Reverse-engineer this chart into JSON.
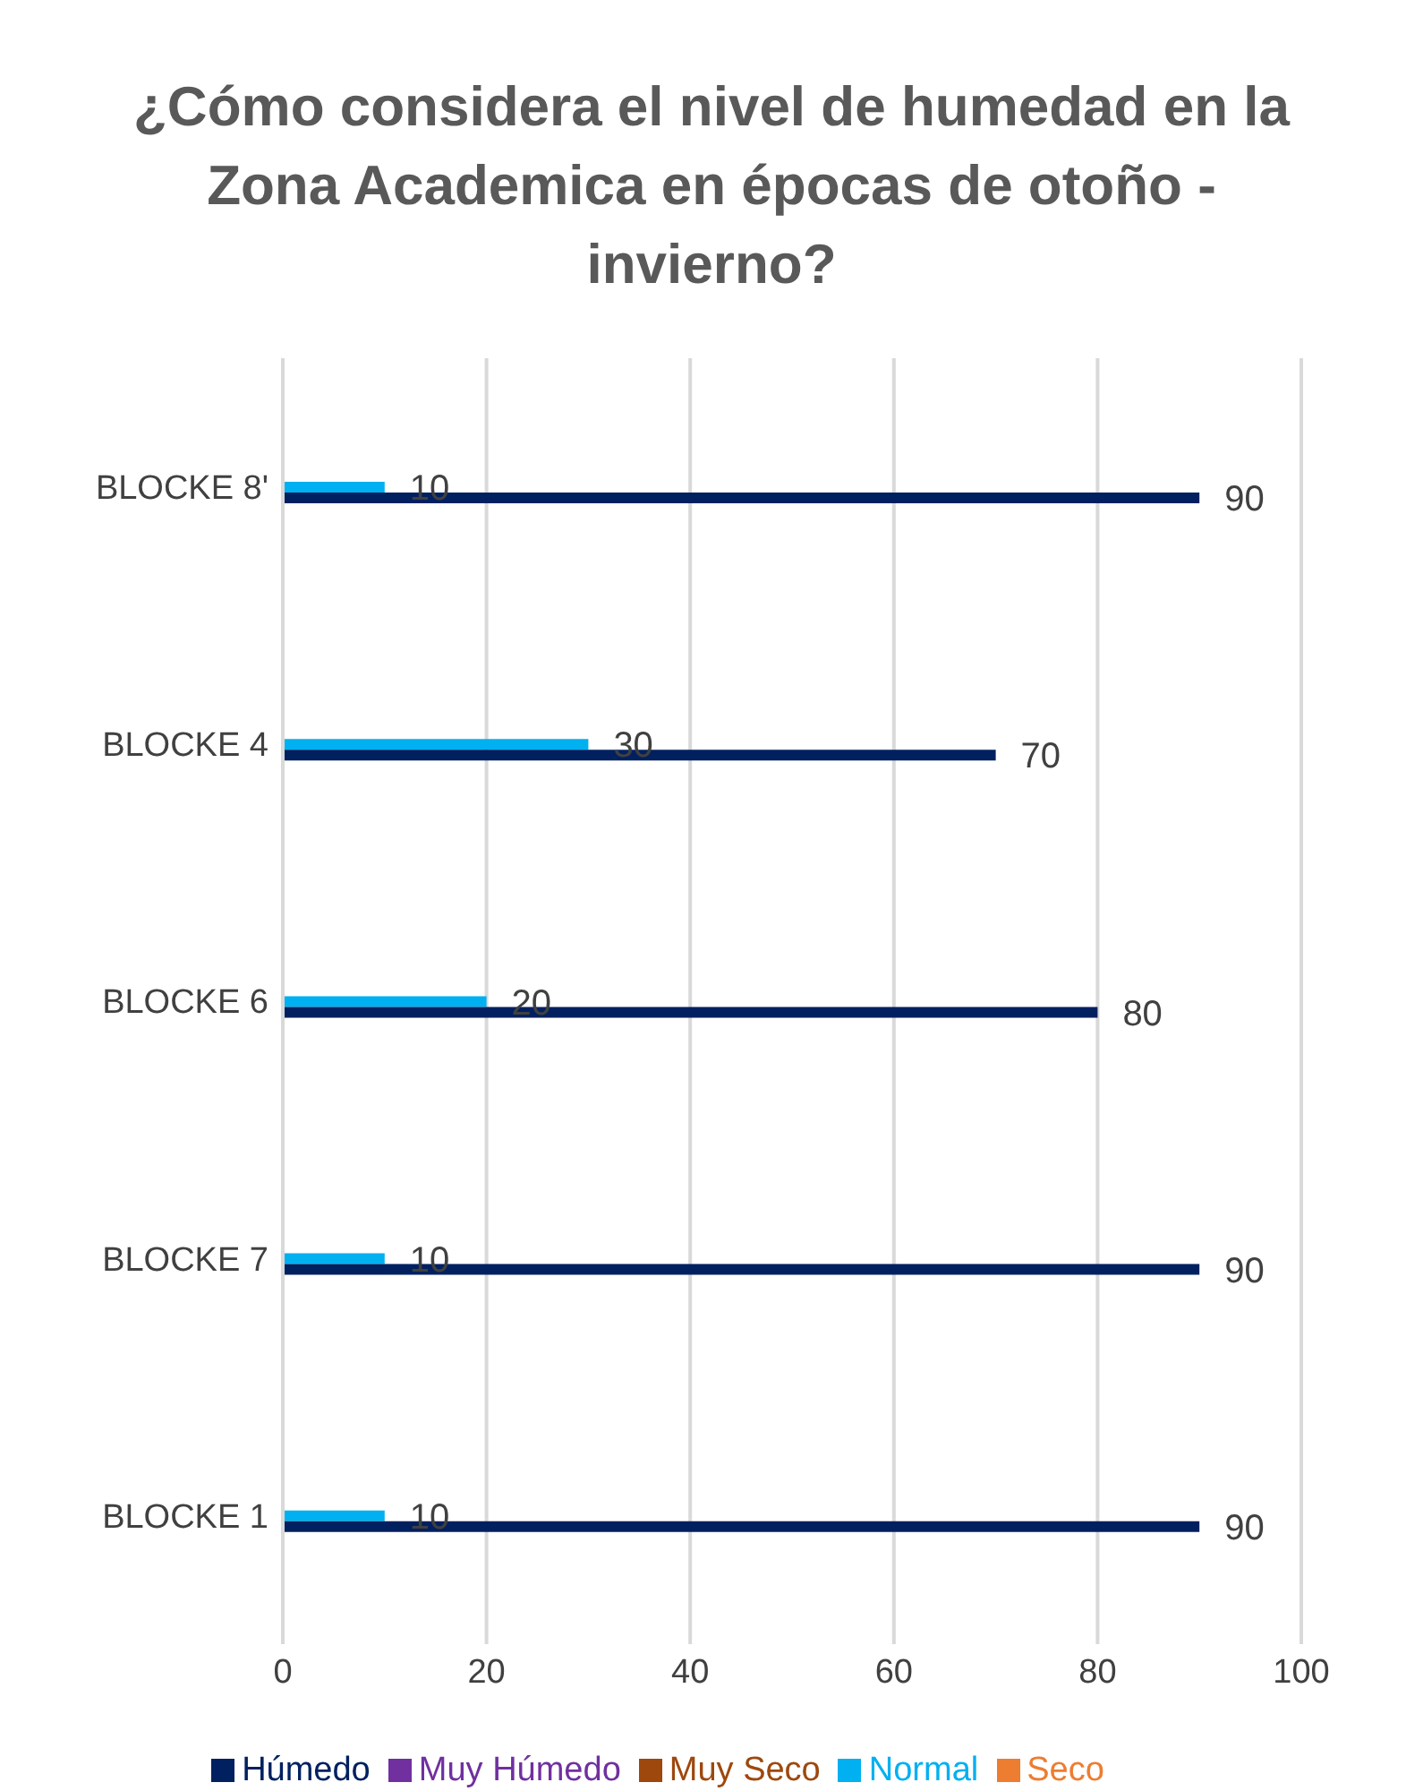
{
  "chart_data": {
    "type": "bar",
    "orientation": "horizontal",
    "title": "¿Cómo considera el nivel de humedad en la Zona Academica en épocas de otoño - invierno?",
    "categories": [
      "BLOCKE 8'",
      "BLOCKE 4",
      "BLOCKE 6",
      "BLOCKE 7",
      "BLOCKE 1"
    ],
    "series": [
      {
        "name": "Muy Seco",
        "color": "#9e480e",
        "values": [
          null,
          null,
          null,
          null,
          null
        ]
      },
      {
        "name": "Seco",
        "color": "#ed7d31",
        "values": [
          null,
          null,
          null,
          null,
          null
        ]
      },
      {
        "name": "Normal",
        "color": "#00b0f0",
        "values": [
          10,
          30,
          20,
          10,
          10
        ]
      },
      {
        "name": "Húmedo",
        "color": "#002060",
        "values": [
          90,
          70,
          80,
          90,
          90
        ]
      },
      {
        "name": "Muy Húmedo",
        "color": "#7030a0",
        "values": [
          null,
          null,
          null,
          null,
          null
        ]
      }
    ],
    "xlim": [
      0,
      100
    ],
    "xticks": [
      0,
      20,
      40,
      60,
      80,
      100
    ],
    "grid": "x",
    "legend": "bottom",
    "data_labels": true
  }
}
